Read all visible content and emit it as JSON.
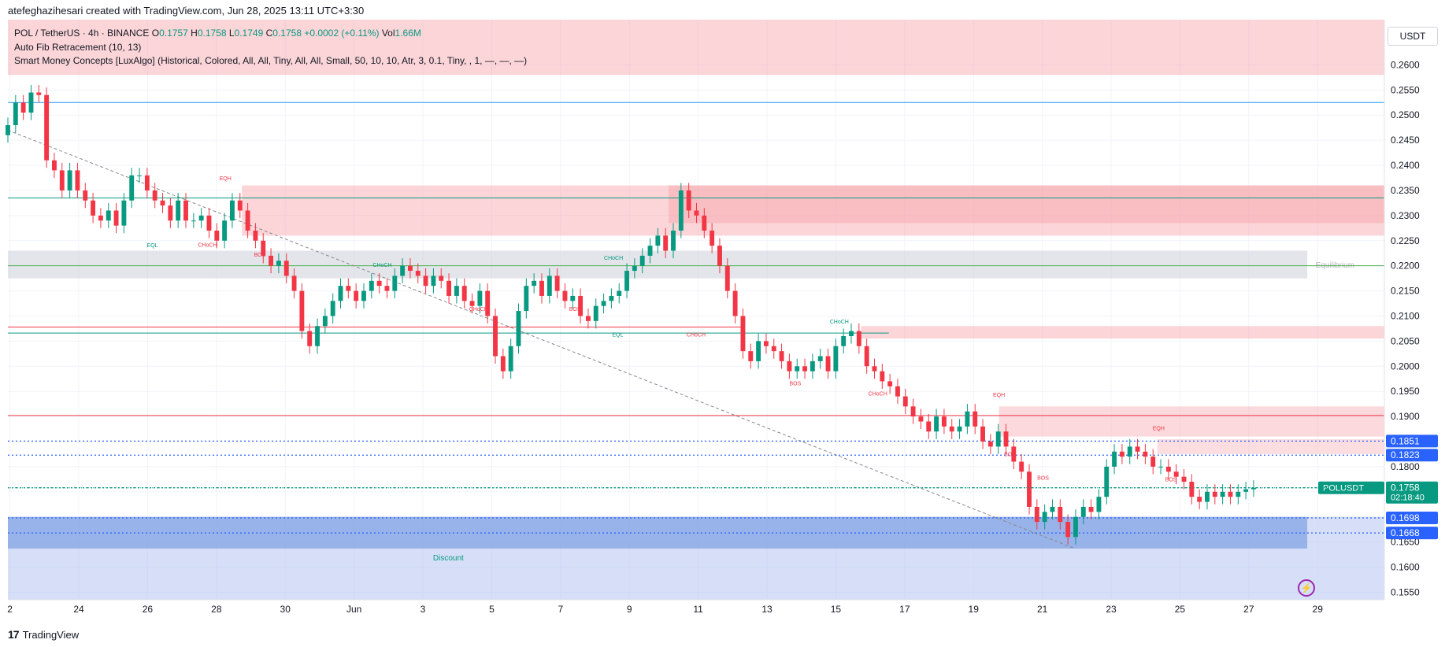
{
  "header": {
    "created_by": "atefeghazihesari created with TradingView.com, Jun 28, 2025 13:11 UTC+3:30"
  },
  "legend": {
    "symbol": "POL / TetherUS · 4h · BINANCE",
    "open_label": "O",
    "open": "0.1757",
    "high_label": "H",
    "high": "0.1758",
    "low_label": "L",
    "low": "0.1749",
    "close_label": "C",
    "close": "0.1758",
    "change": "+0.0002 (+0.11%)",
    "vol_label": "Vol",
    "vol": "1.66M",
    "indicator1": "Auto Fib Retracement (10, 13)",
    "indicator2": "Smart Money Concepts [LuxAlgo] (Historical, Colored, All, All, Tiny, All, All, Small, 50, 10, 10, Atr, 3, 0.1, Tiny, , 1, —, —, —)"
  },
  "currency": "USDT",
  "footer": {
    "brand": "TradingView",
    "logo": "17"
  },
  "colors": {
    "up": "#089981",
    "down": "#f23645",
    "supply": "#f7a1a8",
    "demand": "#4d7fd8",
    "equilibrium": "#b2b5be",
    "blue_line": "#2962ff"
  },
  "chart_data": {
    "type": "candlestick",
    "symbol": "POLUSDT",
    "interval": "4h",
    "ylim": [
      0.1535,
      0.269
    ],
    "y_ticks": [
      "0.2600",
      "0.2550",
      "0.2500",
      "0.2450",
      "0.2400",
      "0.2350",
      "0.2300",
      "0.2250",
      "0.2200",
      "0.2150",
      "0.2100",
      "0.2050",
      "0.2000",
      "0.1950",
      "0.1900",
      "0.1850",
      "0.1800",
      "0.1750",
      "0.1700",
      "0.1650",
      "0.1600",
      "0.1550"
    ],
    "x_ticks": [
      "2",
      "24",
      "26",
      "28",
      "30",
      "Jun",
      "3",
      "5",
      "7",
      "9",
      "11",
      "13",
      "15",
      "17",
      "19",
      "21",
      "23",
      "25",
      "27",
      "29"
    ],
    "price_labels": [
      {
        "value": 0.1851,
        "label": "0.1851",
        "color": "#2962ff"
      },
      {
        "value": 0.1823,
        "label": "0.1823",
        "color": "#2962ff"
      },
      {
        "value": 0.1758,
        "label": "0.1758",
        "extra": "02:18:40",
        "symbol": "POLUSDT",
        "color": "#089981"
      },
      {
        "value": 0.1698,
        "label": "0.1698",
        "color": "#2962ff"
      },
      {
        "value": 0.1668,
        "label": "0.1668",
        "color": "#2962ff"
      }
    ],
    "zone_labels": {
      "equilibrium": "Equilibrium",
      "discount": "Discount"
    },
    "structure_labels": [
      {
        "text": "EQH",
        "x": 0.158,
        "y": 0.237,
        "color": "#f23645"
      },
      {
        "text": "EQL",
        "x": 0.105,
        "y": 0.2237,
        "color": "#089981"
      },
      {
        "text": "CHoCH",
        "x": 0.145,
        "y": 0.2238,
        "color": "#f23645"
      },
      {
        "text": "BOS",
        "x": 0.183,
        "y": 0.2218,
        "color": "#f23645"
      },
      {
        "text": "CHoCH",
        "x": 0.272,
        "y": 0.2198,
        "color": "#089981"
      },
      {
        "text": "CHoCH",
        "x": 0.342,
        "y": 0.211,
        "color": "#f23645"
      },
      {
        "text": "CHoCH",
        "x": 0.44,
        "y": 0.2212,
        "color": "#089981"
      },
      {
        "text": "BOS",
        "x": 0.412,
        "y": 0.211,
        "color": "#f23645"
      },
      {
        "text": "EQL",
        "x": 0.443,
        "y": 0.2059,
        "color": "#089981"
      },
      {
        "text": "CHoCH",
        "x": 0.5,
        "y": 0.2059,
        "color": "#f23645"
      },
      {
        "text": "CHoCH",
        "x": 0.604,
        "y": 0.2085,
        "color": "#089981"
      },
      {
        "text": "BOS",
        "x": 0.572,
        "y": 0.1962,
        "color": "#f23645"
      },
      {
        "text": "CHoCH",
        "x": 0.632,
        "y": 0.1942,
        "color": "#f23645"
      },
      {
        "text": "EQH",
        "x": 0.72,
        "y": 0.1939,
        "color": "#f23645"
      },
      {
        "text": "BOS",
        "x": 0.728,
        "y": 0.1821,
        "color": "#f23645"
      },
      {
        "text": "BOS",
        "x": 0.752,
        "y": 0.1774,
        "color": "#f23645"
      },
      {
        "text": "EQH",
        "x": 0.836,
        "y": 0.1873,
        "color": "#f23645"
      },
      {
        "text": "BOS",
        "x": 0.845,
        "y": 0.1771,
        "color": "#f23645"
      }
    ],
    "candles": [
      0.248,
      0.2525,
      0.2505,
      0.2545,
      0.254,
      0.241,
      0.239,
      0.235,
      0.239,
      0.235,
      0.233,
      0.23,
      0.229,
      0.231,
      0.228,
      0.233,
      0.238,
      0.238,
      0.235,
      0.233,
      0.232,
      0.229,
      0.233,
      0.229,
      0.229,
      0.23,
      0.227,
      0.225,
      0.229,
      0.233,
      0.231,
      0.227,
      0.225,
      0.222,
      0.22,
      0.221,
      0.218,
      0.215,
      0.207,
      0.204,
      0.208,
      0.21,
      0.213,
      0.216,
      0.215,
      0.213,
      0.215,
      0.217,
      0.216,
      0.215,
      0.218,
      0.22,
      0.219,
      0.218,
      0.216,
      0.218,
      0.217,
      0.214,
      0.216,
      0.213,
      0.212,
      0.215,
      0.21,
      0.202,
      0.199,
      0.204,
      0.211,
      0.216,
      0.217,
      0.214,
      0.218,
      0.215,
      0.213,
      0.214,
      0.21,
      0.209,
      0.212,
      0.213,
      0.214,
      0.215,
      0.219,
      0.22,
      0.222,
      0.224,
      0.226,
      0.223,
      0.227,
      0.235,
      0.231,
      0.23,
      0.227,
      0.224,
      0.22,
      0.215,
      0.21,
      0.203,
      0.201,
      0.205,
      0.204,
      0.203,
      0.201,
      0.199,
      0.2,
      0.199,
      0.201,
      0.202,
      0.199,
      0.204,
      0.206,
      0.207,
      0.204,
      0.2,
      0.199,
      0.197,
      0.196,
      0.194,
      0.192,
      0.19,
      0.189,
      0.187,
      0.19,
      0.188,
      0.187,
      0.188,
      0.191,
      0.188,
      0.185,
      0.184,
      0.187,
      0.184,
      0.181,
      0.179,
      0.172,
      0.169,
      0.171,
      0.172,
      0.169,
      0.166,
      0.17,
      0.172,
      0.171,
      0.174,
      0.18,
      0.183,
      0.182,
      0.184,
      0.183,
      0.182,
      0.18,
      0.18,
      0.179,
      0.178,
      0.177,
      0.174,
      0.173,
      0.175,
      0.174,
      0.175,
      0.174,
      0.175,
      0.1755,
      0.1758
    ]
  }
}
